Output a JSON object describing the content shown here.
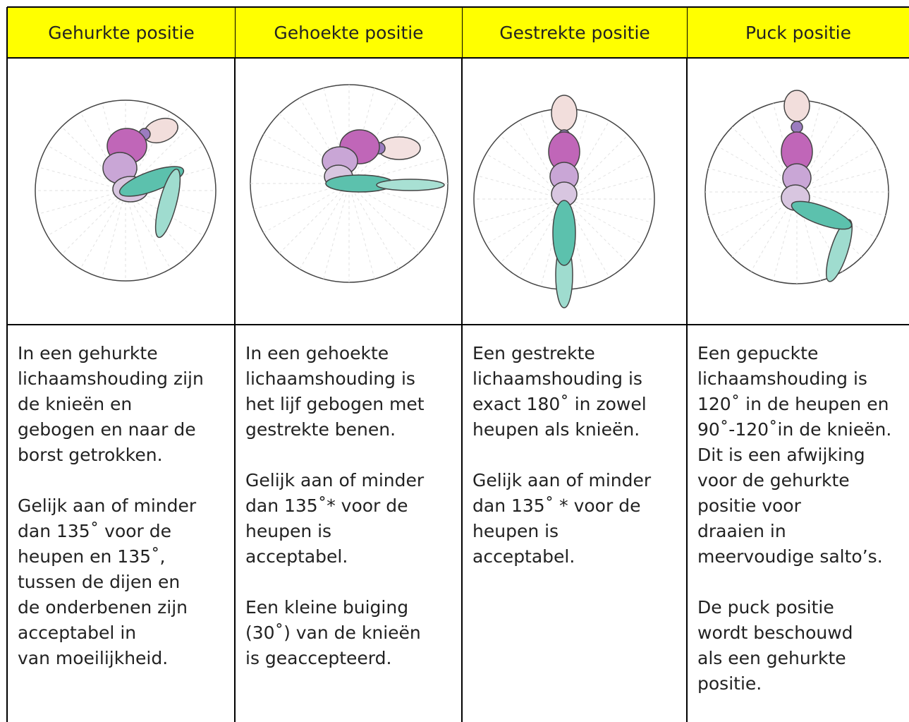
{
  "table": {
    "header": [
      "Gehurkte positie",
      "Gehoekte positie",
      "Gestrekte positie",
      "Puck positie"
    ],
    "descriptions": [
      [
        [
          "In een gehurkte",
          "lichaamshouding zijn",
          "de knieën en",
          "gebogen en naar de",
          "borst getrokken."
        ],
        [
          "Gelijk aan of minder",
          "dan 135˚ voor de",
          "heupen en 135˚,",
          "tussen de dijen en",
          "de onderbenen zijn",
          "acceptabel in",
          "van moeilijkheid."
        ]
      ],
      [
        [
          "In een gehoekte",
          "lichaamshouding is",
          "het lijf gebogen met",
          "gestrekte benen."
        ],
        [
          "Gelijk aan of minder",
          "dan 135˚* voor de",
          "heupen is",
          "acceptabel."
        ],
        [
          "Een kleine buiging",
          "(30˚) van de knieën",
          "is geaccepteerd."
        ]
      ],
      [
        [
          "Een gestrekte",
          "lichaamshouding is",
          "exact 180˚ in zowel",
          "heupen als knieën."
        ],
        [
          "Gelijk aan of minder",
          "dan 135˚ * voor de",
          "heupen is",
          "acceptabel."
        ]
      ],
      [
        [
          "Een gepuckte",
          "lichaamshouding is",
          "120˚ in de heupen en",
          "90˚-120˚in de knieën.",
          "Dit is een afwijking",
          "voor de gehurkte",
          "positie voor",
          "draaien in",
          "meervoudige salto’s."
        ],
        [
          "De puck positie",
          "wordt beschouwd",
          "als een gehurkte",
          "positie."
        ]
      ]
    ]
  }
}
